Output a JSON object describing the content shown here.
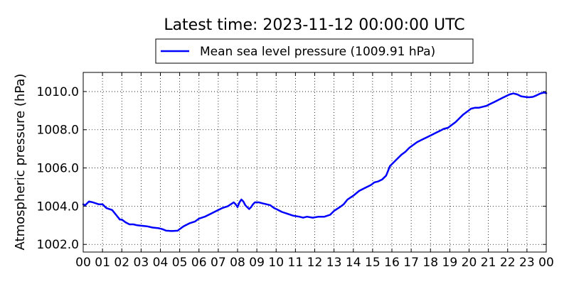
{
  "chart_data": {
    "type": "line",
    "title": "Latest time: 2023-11-12 00:00:00 UTC",
    "xlabel": "",
    "ylabel": "Atmospheric pressure (hPa)",
    "xlim": [
      0,
      24
    ],
    "ylim": [
      1001.6,
      1011.0
    ],
    "grid": true,
    "legend_position": "top-center",
    "x_ticks": [
      {
        "value": 0,
        "label": "00"
      },
      {
        "value": 1,
        "label": "01"
      },
      {
        "value": 2,
        "label": "02"
      },
      {
        "value": 3,
        "label": "03"
      },
      {
        "value": 4,
        "label": "04"
      },
      {
        "value": 5,
        "label": "05"
      },
      {
        "value": 6,
        "label": "06"
      },
      {
        "value": 7,
        "label": "07"
      },
      {
        "value": 8,
        "label": "08"
      },
      {
        "value": 9,
        "label": "09"
      },
      {
        "value": 10,
        "label": "10"
      },
      {
        "value": 11,
        "label": "11"
      },
      {
        "value": 12,
        "label": "12"
      },
      {
        "value": 13,
        "label": "13"
      },
      {
        "value": 14,
        "label": "14"
      },
      {
        "value": 15,
        "label": "15"
      },
      {
        "value": 16,
        "label": "16"
      },
      {
        "value": 17,
        "label": "17"
      },
      {
        "value": 18,
        "label": "18"
      },
      {
        "value": 19,
        "label": "19"
      },
      {
        "value": 20,
        "label": "20"
      },
      {
        "value": 21,
        "label": "21"
      },
      {
        "value": 22,
        "label": "22"
      },
      {
        "value": 23,
        "label": "23"
      },
      {
        "value": 24,
        "label": "00"
      }
    ],
    "y_ticks": [
      {
        "value": 1002,
        "label": "1002.0"
      },
      {
        "value": 1004,
        "label": "1004.0"
      },
      {
        "value": 1006,
        "label": "1006.0"
      },
      {
        "value": 1008,
        "label": "1008.0"
      },
      {
        "value": 1010,
        "label": "1010.0"
      }
    ],
    "series": [
      {
        "name": "Mean sea level pressure (1009.91 hPa)",
        "color": "#0000ff",
        "x": [
          0.0,
          0.1,
          0.3,
          0.5,
          0.8,
          1.0,
          1.2,
          1.5,
          1.7,
          1.9,
          2.0,
          2.2,
          2.4,
          2.6,
          2.8,
          3.0,
          3.3,
          3.6,
          3.9,
          4.1,
          4.3,
          4.6,
          4.9,
          5.0,
          5.2,
          5.5,
          5.8,
          6.0,
          6.3,
          6.6,
          6.9,
          7.2,
          7.5,
          7.8,
          7.9,
          8.0,
          8.1,
          8.2,
          8.3,
          8.4,
          8.6,
          8.7,
          8.8,
          8.9,
          9.0,
          9.1,
          9.3,
          9.5,
          9.7,
          9.9,
          10.0,
          10.3,
          10.6,
          10.9,
          11.2,
          11.4,
          11.6,
          11.9,
          12.2,
          12.5,
          12.8,
          13.0,
          13.3,
          13.5,
          13.7,
          14.0,
          14.3,
          14.6,
          14.9,
          15.1,
          15.3,
          15.5,
          15.7,
          15.8,
          15.9,
          16.1,
          16.3,
          16.5,
          16.7,
          16.9,
          17.1,
          17.3,
          17.5,
          17.7,
          17.9,
          18.1,
          18.3,
          18.5,
          18.7,
          18.9,
          19.1,
          19.3,
          19.5,
          19.7,
          19.9,
          20.1,
          20.3,
          20.5,
          20.7,
          20.9,
          21.1,
          21.3,
          21.5,
          21.7,
          21.9,
          22.1,
          22.3,
          22.5,
          22.7,
          22.9,
          23.1,
          23.3,
          23.5,
          23.7,
          23.9,
          24.0
        ],
        "y": [
          1004.1,
          1004.05,
          1004.25,
          1004.2,
          1004.1,
          1004.1,
          1003.9,
          1003.8,
          1003.55,
          1003.3,
          1003.3,
          1003.15,
          1003.05,
          1003.05,
          1003.0,
          1002.98,
          1002.95,
          1002.88,
          1002.85,
          1002.8,
          1002.72,
          1002.7,
          1002.72,
          1002.8,
          1002.95,
          1003.1,
          1003.2,
          1003.35,
          1003.45,
          1003.6,
          1003.75,
          1003.9,
          1004.0,
          1004.2,
          1004.1,
          1003.95,
          1004.2,
          1004.35,
          1004.25,
          1004.05,
          1003.85,
          1003.95,
          1004.1,
          1004.2,
          1004.2,
          1004.2,
          1004.15,
          1004.1,
          1004.05,
          1003.9,
          1003.85,
          1003.7,
          1003.6,
          1003.5,
          1003.45,
          1003.4,
          1003.45,
          1003.4,
          1003.45,
          1003.45,
          1003.55,
          1003.75,
          1003.95,
          1004.1,
          1004.35,
          1004.55,
          1004.8,
          1004.95,
          1005.1,
          1005.25,
          1005.3,
          1005.4,
          1005.6,
          1005.85,
          1006.1,
          1006.3,
          1006.5,
          1006.7,
          1006.85,
          1007.05,
          1007.2,
          1007.35,
          1007.45,
          1007.55,
          1007.65,
          1007.75,
          1007.85,
          1007.95,
          1008.05,
          1008.1,
          1008.25,
          1008.4,
          1008.6,
          1008.8,
          1008.95,
          1009.1,
          1009.15,
          1009.15,
          1009.2,
          1009.25,
          1009.35,
          1009.45,
          1009.55,
          1009.65,
          1009.75,
          1009.85,
          1009.9,
          1009.85,
          1009.75,
          1009.72,
          1009.7,
          1009.72,
          1009.8,
          1009.9,
          1009.95,
          1009.91
        ]
      }
    ]
  }
}
